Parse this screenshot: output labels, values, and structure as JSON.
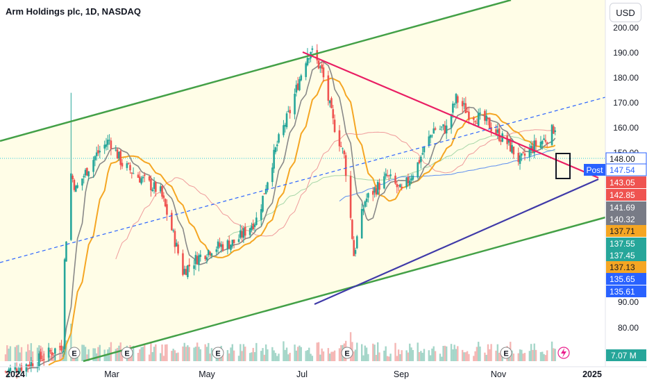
{
  "header": {
    "title": "Arm Holdings plc, 1D, NASDAQ",
    "currency": "USD"
  },
  "colors": {
    "up": "#26a69a",
    "down": "#ef5350",
    "channel_line": "#43a047",
    "channel_fill": "#fffde7",
    "resistance_line": "#e91e63",
    "support_line": "#3f3aa8",
    "midline": "#2962ff",
    "ma_gray": "#888888",
    "ma_orange": "#f5a623",
    "ma_red_thin": "#ef9a9a",
    "ma_green_thin": "#a5d6a7",
    "ma_blue_thin": "#5b8def"
  },
  "chart_data": {
    "type": "candlestick",
    "title": "Arm Holdings plc, 1D, NASDAQ",
    "y_scale": "log",
    "ylim": [
      68,
      205
    ],
    "x_ticks": [
      "2024",
      "Mar",
      "May",
      "Jul",
      "Sep",
      "Nov",
      "2025"
    ],
    "y_ticks": [
      "200.00",
      "190.00",
      "180.00",
      "170.00",
      "160.00",
      "150.00",
      "90.00",
      "80.00"
    ],
    "price_tags": [
      {
        "value": "148.00",
        "color": "#ffffff",
        "text_color": "#131722"
      },
      {
        "value": "147.54",
        "color": "#ffffff",
        "text_color": "#2962ff",
        "label": "Post"
      },
      {
        "value": "143.05",
        "color": "#ef5350",
        "text_color": "#ffffff"
      },
      {
        "value": "142.85",
        "color": "#ef5350",
        "text_color": "#ffffff"
      },
      {
        "value": "141.69",
        "color": "#787b86",
        "text_color": "#ffffff"
      },
      {
        "value": "140.32",
        "color": "#787b86",
        "text_color": "#ffffff"
      },
      {
        "value": "137.71",
        "color": "#f5a623",
        "text_color": "#131722"
      },
      {
        "value": "137.55",
        "color": "#26a69a",
        "text_color": "#ffffff"
      },
      {
        "value": "137.45",
        "color": "#26a69a",
        "text_color": "#ffffff"
      },
      {
        "value": "137.13",
        "color": "#f5a623",
        "text_color": "#131722"
      },
      {
        "value": "135.65",
        "color": "#2962ff",
        "text_color": "#ffffff"
      },
      {
        "value": "135.61",
        "color": "#2962ff",
        "text_color": "#ffffff"
      }
    ],
    "volume_tag": "7.07 M",
    "volume_axis_label": "7.07M",
    "earnings_markers": [
      "E",
      "E",
      "E",
      "E",
      "E",
      "E"
    ],
    "series": [
      {
        "name": "price",
        "knots": [
          [
            "2024-01-02",
            70
          ],
          [
            "2024-01-20",
            72
          ],
          [
            "2024-02-07",
            76
          ],
          [
            "2024-02-08",
            98
          ],
          [
            "2024-02-12",
            128
          ],
          [
            "2024-02-15",
            122
          ],
          [
            "2024-02-27",
            135
          ],
          [
            "2024-03-07",
            142
          ],
          [
            "2024-03-15",
            132
          ],
          [
            "2024-03-25",
            127
          ],
          [
            "2024-04-08",
            121
          ],
          [
            "2024-04-22",
            95
          ],
          [
            "2024-05-01",
            99
          ],
          [
            "2024-05-10",
            102
          ],
          [
            "2024-05-25",
            104
          ],
          [
            "2024-06-08",
            112
          ],
          [
            "2024-06-20",
            140
          ],
          [
            "2024-06-28",
            155
          ],
          [
            "2024-07-08",
            182
          ],
          [
            "2024-07-11",
            187
          ],
          [
            "2024-07-18",
            175
          ],
          [
            "2024-07-25",
            150
          ],
          [
            "2024-08-01",
            135
          ],
          [
            "2024-08-07",
            100
          ],
          [
            "2024-08-14",
            118
          ],
          [
            "2024-08-28",
            127
          ],
          [
            "2024-09-06",
            121
          ],
          [
            "2024-09-16",
            132
          ],
          [
            "2024-09-26",
            147
          ],
          [
            "2024-10-04",
            147
          ],
          [
            "2024-10-10",
            161
          ],
          [
            "2024-10-18",
            154
          ],
          [
            "2024-10-29",
            150
          ],
          [
            "2024-11-06",
            144
          ],
          [
            "2024-11-12",
            140
          ],
          [
            "2024-11-19",
            133
          ],
          [
            "2024-11-27",
            139
          ],
          [
            "2024-12-06",
            143
          ],
          [
            "2024-12-11",
            148
          ]
        ]
      }
    ]
  }
}
